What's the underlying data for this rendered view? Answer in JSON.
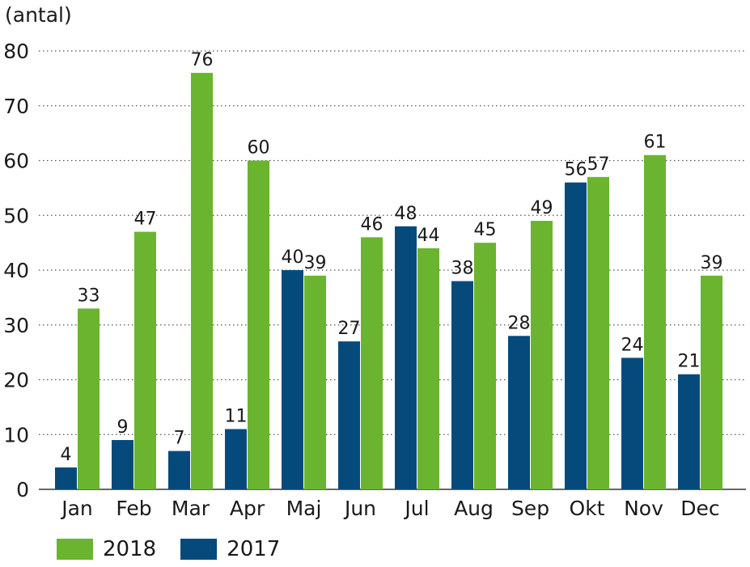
{
  "chart_data": {
    "type": "bar",
    "ylabel": "(antal)",
    "categories": [
      "Jan",
      "Feb",
      "Mar",
      "Apr",
      "Maj",
      "Jun",
      "Jul",
      "Aug",
      "Sep",
      "Okt",
      "Nov",
      "Dec"
    ],
    "series": [
      {
        "name": "2017",
        "color": "#064a7c",
        "values": [
          4,
          9,
          7,
          11,
          40,
          27,
          48,
          38,
          28,
          56,
          24,
          21
        ]
      },
      {
        "name": "2018",
        "color": "#6ab42f",
        "values": [
          33,
          47,
          76,
          60,
          39,
          46,
          44,
          45,
          49,
          57,
          61,
          39
        ]
      }
    ],
    "ylim": [
      0,
      80
    ],
    "yticks": [
      0,
      10,
      20,
      30,
      40,
      50,
      60,
      70,
      80
    ],
    "grid": "dotted horizontal",
    "legend_position": "bottom-left",
    "legend_order": [
      "2018",
      "2017"
    ]
  }
}
